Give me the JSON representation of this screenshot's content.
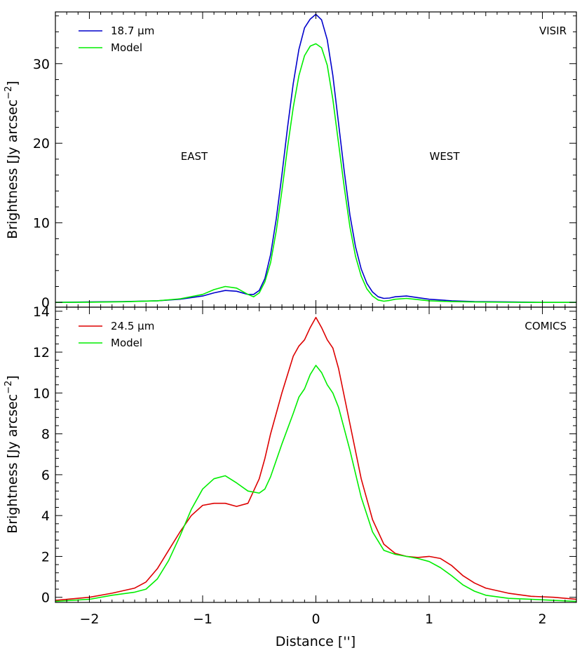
{
  "chart_data": [
    {
      "type": "line",
      "xlabel": "",
      "ylabel": "Brightness [Jy arcsec",
      "ylabel_sup": "−2",
      "ylabel_close": "]",
      "xlim": [
        -2.3,
        2.3
      ],
      "ylim": [
        -0.6,
        36.5
      ],
      "yticks": [
        0,
        10,
        20,
        30
      ],
      "xticks": [
        -2,
        -1,
        0,
        1,
        2
      ],
      "annotations": [
        "EAST",
        "WEST",
        "VISIR"
      ],
      "legend_position": "top-left",
      "series": [
        {
          "name": "18.7 μm",
          "color": "#0000cc",
          "x": [
            -2.3,
            -2.0,
            -1.7,
            -1.4,
            -1.2,
            -1.0,
            -0.9,
            -0.8,
            -0.7,
            -0.6,
            -0.55,
            -0.5,
            -0.45,
            -0.4,
            -0.35,
            -0.3,
            -0.25,
            -0.2,
            -0.15,
            -0.1,
            -0.05,
            0.0,
            0.05,
            0.1,
            0.15,
            0.2,
            0.25,
            0.3,
            0.35,
            0.4,
            0.45,
            0.5,
            0.55,
            0.6,
            0.65,
            0.7,
            0.8,
            0.9,
            1.0,
            1.2,
            1.4,
            1.7,
            2.0,
            2.3
          ],
          "y": [
            0.0,
            0.05,
            0.1,
            0.2,
            0.4,
            0.8,
            1.2,
            1.5,
            1.4,
            1.0,
            1.0,
            1.5,
            3.0,
            6.0,
            10.5,
            16.0,
            22.0,
            27.5,
            31.8,
            34.5,
            35.6,
            36.2,
            35.5,
            33.0,
            28.5,
            22.5,
            16.5,
            11.0,
            7.0,
            4.2,
            2.4,
            1.3,
            0.7,
            0.5,
            0.55,
            0.7,
            0.8,
            0.6,
            0.4,
            0.2,
            0.1,
            0.05,
            0.0,
            0.0
          ]
        },
        {
          "name": "Model",
          "color": "#00ee00",
          "x": [
            -2.3,
            -2.0,
            -1.7,
            -1.4,
            -1.2,
            -1.0,
            -0.9,
            -0.8,
            -0.7,
            -0.6,
            -0.55,
            -0.5,
            -0.45,
            -0.4,
            -0.35,
            -0.3,
            -0.25,
            -0.2,
            -0.15,
            -0.1,
            -0.05,
            0.0,
            0.05,
            0.1,
            0.15,
            0.2,
            0.25,
            0.3,
            0.35,
            0.4,
            0.45,
            0.5,
            0.55,
            0.6,
            0.65,
            0.7,
            0.8,
            0.9,
            1.0,
            1.2,
            1.4,
            1.7,
            2.0,
            2.3
          ],
          "y": [
            0.0,
            0.03,
            0.08,
            0.2,
            0.45,
            1.0,
            1.6,
            2.0,
            1.8,
            1.0,
            0.7,
            1.2,
            2.6,
            5.0,
            9.0,
            14.0,
            19.5,
            24.5,
            28.5,
            31.0,
            32.2,
            32.5,
            32.0,
            29.8,
            25.5,
            20.0,
            14.5,
            9.5,
            5.8,
            3.3,
            1.7,
            0.8,
            0.3,
            0.15,
            0.25,
            0.4,
            0.5,
            0.35,
            0.2,
            0.1,
            0.05,
            0.02,
            0.0,
            0.0
          ]
        }
      ]
    },
    {
      "type": "line",
      "xlabel": "Distance ['']",
      "ylabel": "Brightness [Jy arcsec",
      "ylabel_sup": "−2",
      "ylabel_close": "]",
      "xlim": [
        -2.3,
        2.3
      ],
      "ylim": [
        -0.25,
        14.2
      ],
      "yticks": [
        0,
        2,
        4,
        6,
        8,
        10,
        12,
        14
      ],
      "xticks": [
        -2,
        -1,
        0,
        1,
        2
      ],
      "xticklabels": [
        "−2",
        "−1",
        "0",
        "1",
        "2"
      ],
      "annotations": [
        "COMICS"
      ],
      "legend_position": "top-left",
      "series": [
        {
          "name": "24.5 μm",
          "color": "#dd0000",
          "x": [
            -2.3,
            -2.0,
            -1.8,
            -1.6,
            -1.5,
            -1.4,
            -1.3,
            -1.2,
            -1.1,
            -1.0,
            -0.9,
            -0.8,
            -0.7,
            -0.6,
            -0.5,
            -0.45,
            -0.4,
            -0.3,
            -0.2,
            -0.15,
            -0.1,
            -0.05,
            0.0,
            0.05,
            0.1,
            0.15,
            0.2,
            0.3,
            0.4,
            0.5,
            0.6,
            0.7,
            0.8,
            0.9,
            1.0,
            1.1,
            1.2,
            1.3,
            1.4,
            1.5,
            1.7,
            1.9,
            2.1,
            2.3
          ],
          "y": [
            -0.15,
            0.0,
            0.2,
            0.45,
            0.75,
            1.4,
            2.3,
            3.2,
            4.0,
            4.5,
            4.6,
            4.6,
            4.45,
            4.6,
            5.8,
            6.8,
            8.0,
            10.0,
            11.8,
            12.3,
            12.6,
            13.2,
            13.7,
            13.2,
            12.6,
            12.2,
            11.2,
            8.5,
            5.8,
            3.8,
            2.6,
            2.15,
            2.0,
            1.95,
            2.0,
            1.9,
            1.55,
            1.05,
            0.7,
            0.45,
            0.2,
            0.05,
            0.0,
            -0.1
          ]
        },
        {
          "name": "Model",
          "color": "#00ee00",
          "x": [
            -2.3,
            -2.0,
            -1.8,
            -1.6,
            -1.5,
            -1.4,
            -1.3,
            -1.2,
            -1.1,
            -1.0,
            -0.9,
            -0.8,
            -0.7,
            -0.6,
            -0.5,
            -0.45,
            -0.4,
            -0.3,
            -0.2,
            -0.15,
            -0.1,
            -0.05,
            0.0,
            0.05,
            0.1,
            0.15,
            0.2,
            0.3,
            0.4,
            0.5,
            0.6,
            0.7,
            0.8,
            0.9,
            1.0,
            1.1,
            1.2,
            1.3,
            1.4,
            1.5,
            1.7,
            1.9,
            2.1,
            2.3
          ],
          "y": [
            -0.2,
            -0.1,
            0.1,
            0.25,
            0.4,
            0.9,
            1.8,
            3.0,
            4.3,
            5.3,
            5.8,
            5.95,
            5.6,
            5.2,
            5.1,
            5.3,
            5.9,
            7.5,
            9.0,
            9.8,
            10.2,
            10.9,
            11.35,
            11.0,
            10.4,
            10.0,
            9.3,
            7.2,
            4.9,
            3.2,
            2.3,
            2.1,
            2.0,
            1.9,
            1.75,
            1.45,
            1.05,
            0.6,
            0.3,
            0.1,
            -0.05,
            -0.1,
            -0.15,
            -0.2
          ]
        }
      ]
    }
  ]
}
